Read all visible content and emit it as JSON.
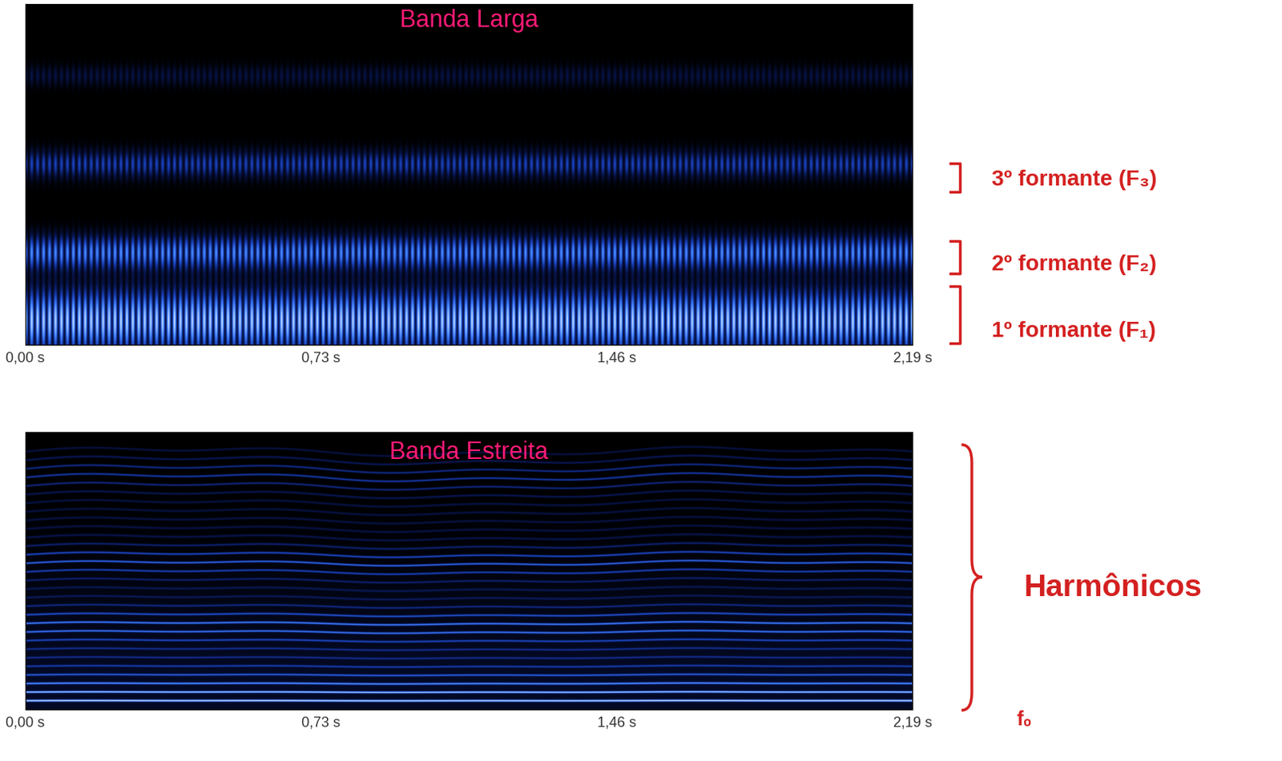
{
  "chart_data": [
    {
      "type": "spectrogram",
      "title": "Banda Larga",
      "xlim": [
        0,
        2.19
      ],
      "xticks": [
        {
          "value": 0,
          "label": "0,00 s"
        },
        {
          "value": 0.73,
          "label": "0,73 s"
        },
        {
          "value": 1.46,
          "label": "1,46 s"
        },
        {
          "value": 2.19,
          "label": "2,19 s"
        }
      ],
      "tick_labels": "x",
      "annotations": [
        "3º formante (F₃)",
        "2º formante (F₂)",
        "1º formante (F₁)"
      ]
    },
    {
      "type": "spectrogram",
      "title": "Banda Estreita",
      "xlim": [
        0,
        2.19
      ],
      "xticks": [
        {
          "value": 0,
          "label": "0,00 s"
        },
        {
          "value": 0.73,
          "label": "0,73 s"
        },
        {
          "value": 1.46,
          "label": "1,46 s"
        },
        {
          "value": 2.19,
          "label": "2,19 s"
        }
      ],
      "tick_labels": "x",
      "annotations": [
        "Harmônicos",
        "f₀"
      ]
    }
  ]
}
